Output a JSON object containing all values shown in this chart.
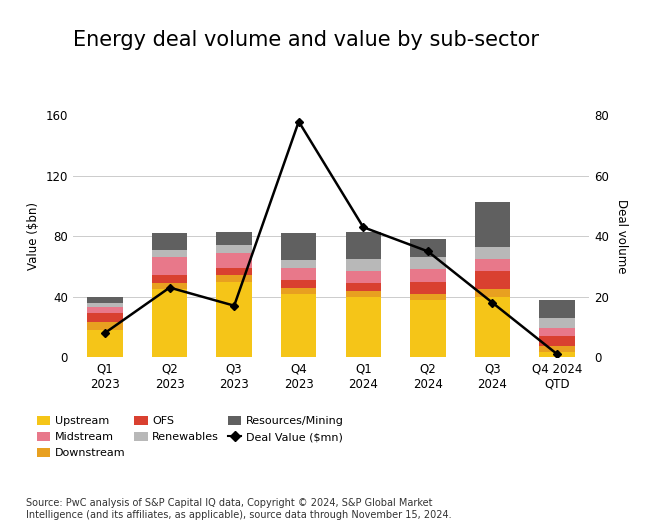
{
  "title": "Energy deal volume and value by sub-sector",
  "categories": [
    "Q1\n2023",
    "Q2\n2023",
    "Q3\n2023",
    "Q4\n2023",
    "Q1\n2024",
    "Q2\n2024",
    "Q3\n2024",
    "Q4 2024\nQTD"
  ],
  "segments": {
    "Upstream": [
      18,
      45,
      50,
      42,
      40,
      38,
      40,
      3
    ],
    "Downstream": [
      5,
      4,
      4,
      4,
      4,
      4,
      5,
      4
    ],
    "OFS": [
      6,
      5,
      5,
      5,
      5,
      8,
      12,
      7
    ],
    "Midstream": [
      4,
      12,
      10,
      8,
      8,
      8,
      8,
      5
    ],
    "Renewables": [
      3,
      5,
      5,
      5,
      8,
      8,
      8,
      7
    ],
    "Resources/Mining": [
      4,
      11,
      9,
      18,
      18,
      12,
      30,
      12
    ]
  },
  "segment_colors": {
    "Upstream": "#F5C518",
    "Downstream": "#E8A020",
    "OFS": "#D94030",
    "Midstream": "#E8788A",
    "Renewables": "#B8B8B8",
    "Resources/Mining": "#606060"
  },
  "segment_order": [
    "Upstream",
    "Downstream",
    "OFS",
    "Midstream",
    "Renewables",
    "Resources/Mining"
  ],
  "deal_values": [
    8,
    23,
    17,
    78,
    43,
    35,
    18,
    1
  ],
  "deal_value_label": "Deal Value ($mn)",
  "ylabel_left": "Value ($bn)",
  "ylabel_right": "Deal volume",
  "ylim_left": [
    0,
    160
  ],
  "ylim_right": [
    0,
    80
  ],
  "yticks_left": [
    0,
    40,
    80,
    120,
    160
  ],
  "yticks_right": [
    0,
    20,
    40,
    60,
    80
  ],
  "source_text": "Source: PwC analysis of S&P Capital IQ data, Copyright © 2024, S&P Global Market\nIntelligence (and its affiliates, as applicable), source data through November 15, 2024.",
  "background_color": "#FFFFFF",
  "line_color": "#000000",
  "line_marker": "D",
  "title_fontsize": 15,
  "axis_fontsize": 8.5,
  "legend_fontsize": 8,
  "source_fontsize": 7,
  "legend_order": [
    "Upstream",
    "Midstream",
    "Downstream",
    "OFS",
    "Renewables",
    "Resources/Mining"
  ]
}
